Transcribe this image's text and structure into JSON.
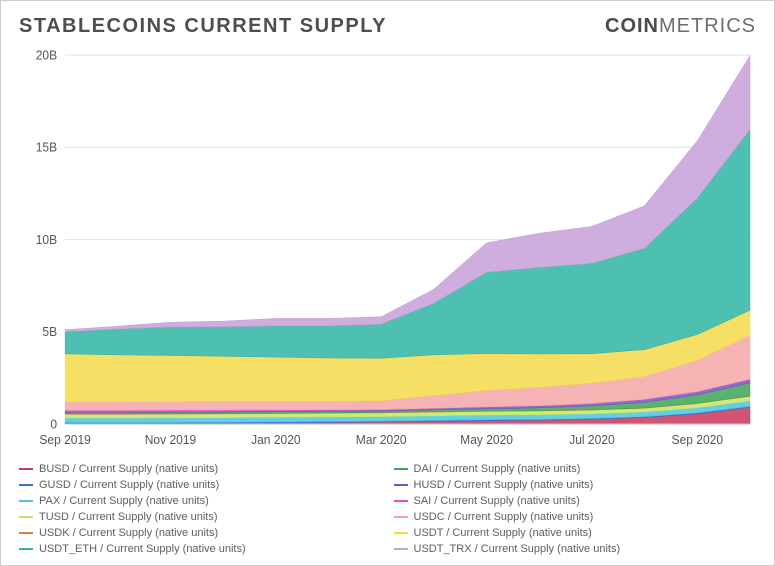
{
  "title": "STABLECOINS CURRENT SUPPLY",
  "brand_a": "COIN",
  "brand_b": "METRICS",
  "chart": {
    "type": "stacked-area",
    "background_color": "#ffffff",
    "grid_color": "#e6e6e6",
    "axis_text_color": "#555555",
    "axis_fontsize": 12,
    "ylim": [
      0,
      20
    ],
    "ytick_labels": [
      "0",
      "5B",
      "10B",
      "15B",
      "20B"
    ],
    "ytick_values": [
      0,
      5,
      10,
      15,
      20
    ],
    "x_categories": [
      "Sep 2019",
      "Nov 2019",
      "Jan 2020",
      "Mar 2020",
      "May 2020",
      "Jul 2020",
      "Sep 2020"
    ],
    "x_positions": [
      0,
      2,
      4,
      6,
      8,
      10,
      12
    ],
    "x_extent": 13,
    "stack_order": [
      "BUSD",
      "GUSD",
      "PAX",
      "TUSD",
      "USDK",
      "DAI",
      "HUSD",
      "SAI",
      "USDC",
      "USDT",
      "USDT_ETH",
      "USDT_TRX"
    ],
    "series": {
      "BUSD": {
        "label": "BUSD / Current Supply (native units)",
        "color": "#c93757",
        "values": [
          0.02,
          0.02,
          0.03,
          0.04,
          0.06,
          0.08,
          0.1,
          0.14,
          0.18,
          0.2,
          0.25,
          0.35,
          0.55,
          0.9
        ]
      },
      "GUSD": {
        "label": "GUSD / Current Supply (native units)",
        "color": "#3b6fd6",
        "values": [
          0.05,
          0.05,
          0.05,
          0.05,
          0.05,
          0.05,
          0.05,
          0.05,
          0.05,
          0.05,
          0.05,
          0.05,
          0.05,
          0.05
        ]
      },
      "PAX": {
        "label": "PAX / Current Supply (native units)",
        "color": "#4cc6d9",
        "values": [
          0.25,
          0.25,
          0.25,
          0.25,
          0.25,
          0.25,
          0.25,
          0.25,
          0.25,
          0.25,
          0.25,
          0.25,
          0.28,
          0.3
        ]
      },
      "TUSD": {
        "label": "TUSD / Current Supply (native units)",
        "color": "#c4e865",
        "values": [
          0.2,
          0.2,
          0.2,
          0.2,
          0.2,
          0.2,
          0.2,
          0.2,
          0.2,
          0.2,
          0.2,
          0.2,
          0.22,
          0.25
        ]
      },
      "USDK": {
        "label": "USDK / Current Supply (native units)",
        "color": "#e87b3a",
        "values": [
          0.02,
          0.02,
          0.02,
          0.02,
          0.02,
          0.02,
          0.02,
          0.02,
          0.02,
          0.02,
          0.02,
          0.02,
          0.02,
          0.02
        ]
      },
      "DAI": {
        "label": "DAI / Current Supply (native units)",
        "color": "#3aa655",
        "values": [
          0.08,
          0.08,
          0.08,
          0.08,
          0.08,
          0.08,
          0.08,
          0.1,
          0.12,
          0.15,
          0.2,
          0.3,
          0.45,
          0.7
        ]
      },
      "HUSD": {
        "label": "HUSD / Current Supply (native units)",
        "color": "#7b4fc4",
        "values": [
          0.05,
          0.05,
          0.05,
          0.05,
          0.05,
          0.05,
          0.06,
          0.08,
          0.1,
          0.12,
          0.14,
          0.16,
          0.18,
          0.2
        ]
      },
      "SAI": {
        "label": "SAI / Current Supply (native units)",
        "color": "#e44fc4",
        "values": [
          0.08,
          0.08,
          0.08,
          0.08,
          0.06,
          0.04,
          0.02,
          0.01,
          0.0,
          0.0,
          0.0,
          0.0,
          0.0,
          0.0
        ]
      },
      "USDC": {
        "label": "USDC / Current Supply (native units)",
        "color": "#f4a6a6",
        "values": [
          0.45,
          0.45,
          0.45,
          0.45,
          0.45,
          0.45,
          0.48,
          0.7,
          0.9,
          1.0,
          1.1,
          1.25,
          1.7,
          2.4
        ]
      },
      "USDT": {
        "label": "USDT / Current Supply (native units)",
        "color": "#f4d94a",
        "values": [
          2.6,
          2.55,
          2.5,
          2.45,
          2.4,
          2.35,
          2.3,
          2.2,
          2.0,
          1.8,
          1.6,
          1.45,
          1.4,
          1.35
        ]
      },
      "USDT_ETH": {
        "label": "USDT_ETH / Current Supply (native units)",
        "color": "#2fb5a5",
        "values": [
          1.2,
          1.4,
          1.55,
          1.6,
          1.7,
          1.75,
          1.85,
          2.8,
          4.4,
          4.7,
          4.9,
          5.5,
          7.4,
          9.8
        ]
      },
      "USDT_TRX": {
        "label": "USDT_TRX / Current Supply (native units)",
        "color": "#c79fd9",
        "values": [
          0.1,
          0.15,
          0.25,
          0.3,
          0.4,
          0.4,
          0.4,
          0.75,
          1.6,
          1.85,
          2.0,
          2.3,
          3.1,
          4.0
        ]
      }
    },
    "legend_rows": [
      [
        "BUSD",
        "DAI"
      ],
      [
        "GUSD",
        "HUSD"
      ],
      [
        "PAX",
        "SAI"
      ],
      [
        "TUSD",
        "USDC"
      ],
      [
        "USDK",
        "USDT"
      ],
      [
        "USDT_ETH",
        "USDT_TRX"
      ]
    ]
  }
}
